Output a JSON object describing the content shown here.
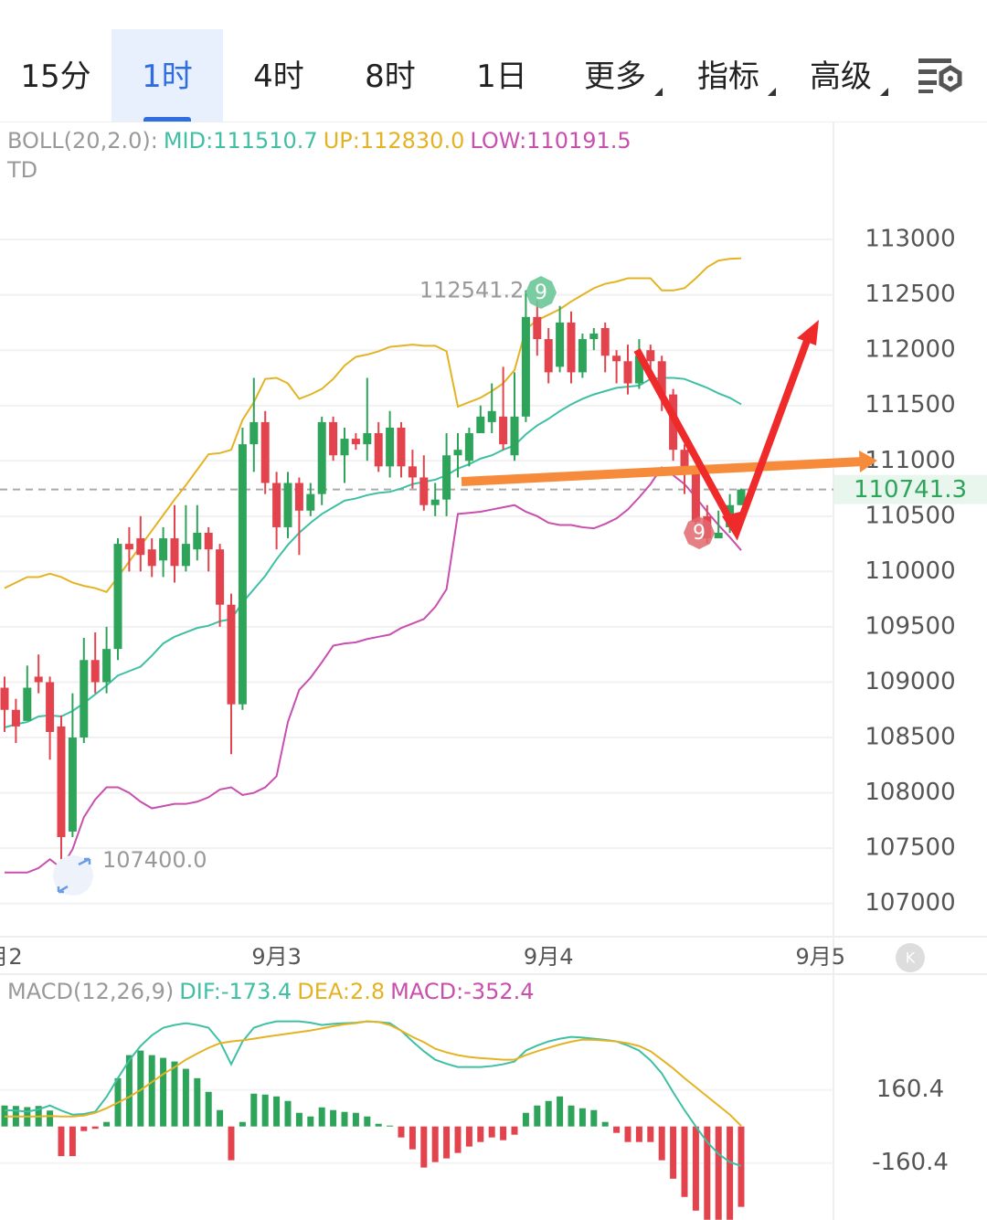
{
  "tabs": {
    "items": [
      "15分",
      "1时",
      "4时",
      "8时",
      "1日",
      "更多",
      "指标",
      "高级"
    ],
    "active": 1
  },
  "chart_data": [
    {
      "type": "candlestick",
      "indicator": "BOLL(20,2.0):",
      "sub_label": "TD",
      "open": [
        108950,
        108750,
        108650,
        109050,
        109000,
        108600,
        107650,
        108500,
        109200,
        109000,
        109300,
        110250,
        110300,
        110200,
        110100,
        110300,
        110050,
        110200,
        110350,
        110200,
        109700,
        108800,
        111150,
        111350,
        110800,
        110400,
        110800,
        110550,
        110700,
        111350,
        111050,
        111200,
        111150,
        111250,
        110950,
        111300,
        110950,
        110850,
        110600,
        110650,
        111050,
        111000,
        111250,
        111350,
        111400,
        111050,
        111400,
        112300,
        112100,
        111850,
        112250,
        111800,
        112100,
        112200,
        111950,
        111900,
        111700,
        112000,
        111900,
        111600,
        111100,
        110900,
        110500,
        110300,
        110400,
        110600
      ],
      "high": [
        109050,
        108850,
        109150,
        109250,
        109050,
        108700,
        108900,
        109400,
        109450,
        109500,
        110300,
        110400,
        110500,
        110300,
        110400,
        110600,
        110600,
        110600,
        110400,
        110250,
        109800,
        111300,
        111750,
        111450,
        110900,
        110900,
        110850,
        110800,
        111400,
        111400,
        111300,
        111250,
        111750,
        111350,
        111450,
        111350,
        111100,
        111050,
        110800,
        111250,
        111250,
        111300,
        111500,
        111700,
        111850,
        111800,
        112541.2,
        112450,
        112200,
        112400,
        112350,
        112150,
        112200,
        112250,
        112000,
        112050,
        112100,
        112050,
        111950,
        111650,
        111150,
        110950,
        110600,
        110550,
        110700,
        110750
      ],
      "low": [
        108550,
        108450,
        108700,
        108900,
        108300,
        107400,
        107600,
        108450,
        108900,
        108900,
        109200,
        110000,
        110000,
        109950,
        109950,
        109900,
        110000,
        110100,
        110000,
        109500,
        108350,
        108750,
        110900,
        110700,
        110200,
        110300,
        110150,
        110500,
        110600,
        111000,
        110800,
        111100,
        111000,
        110900,
        110850,
        110850,
        110750,
        110550,
        110500,
        110500,
        110850,
        110950,
        111250,
        111250,
        111100,
        111000,
        111350,
        111950,
        111700,
        111800,
        111700,
        111750,
        112000,
        111800,
        111700,
        111600,
        111650,
        111750,
        111450,
        111000,
        110700,
        110350,
        110250,
        110300,
        110350,
        110600
      ],
      "close": [
        108750,
        108600,
        108950,
        109000,
        108550,
        107600,
        108500,
        109200,
        109000,
        109300,
        110250,
        110200,
        110150,
        110050,
        110300,
        110050,
        110250,
        110350,
        110200,
        109700,
        108800,
        111150,
        111350,
        110800,
        110400,
        110800,
        110550,
        110700,
        111350,
        111050,
        111200,
        111150,
        111250,
        110950,
        111300,
        110950,
        110850,
        110600,
        110650,
        111050,
        111100,
        111250,
        111400,
        111450,
        111150,
        111400,
        112300,
        112100,
        111800,
        112250,
        111800,
        112100,
        112150,
        111950,
        111900,
        111700,
        111950,
        111900,
        111600,
        111100,
        110900,
        110450,
        110300,
        110350,
        110600,
        110741.3
      ],
      "up_color": "#2ea35a",
      "down_color": "#e2434c",
      "series": [
        {
          "name": "MID:111510.7",
          "color": "#3fbfa3",
          "values": [
            108590,
            108620,
            108640,
            108690,
            108700,
            108690,
            108740,
            108810,
            108890,
            108970,
            109060,
            109100,
            109140,
            109240,
            109350,
            109410,
            109450,
            109490,
            109510,
            109550,
            109570,
            109720,
            109840,
            109960,
            110110,
            110240,
            110350,
            110440,
            110520,
            110580,
            110640,
            110660,
            110690,
            110710,
            110720,
            110750,
            110790,
            110810,
            110830,
            110870,
            110930,
            110970,
            111020,
            111050,
            111100,
            111140,
            111240,
            111320,
            111380,
            111450,
            111510,
            111560,
            111600,
            111630,
            111660,
            111670,
            111680,
            111740,
            111750,
            111750,
            111740,
            111700,
            111660,
            111610,
            111570,
            111510.7
          ]
        },
        {
          "name": "UP:112830.0",
          "color": "#e4b324",
          "values": [
            109850,
            109900,
            109950,
            109950,
            109980,
            109950,
            109900,
            109870,
            109850,
            109815,
            109950,
            110090,
            110230,
            110370,
            110510,
            110650,
            110780,
            110920,
            111060,
            111070,
            111100,
            111370,
            111530,
            111740,
            111750,
            111700,
            111560,
            111600,
            111650,
            111740,
            111860,
            111940,
            111960,
            111990,
            112030,
            112040,
            112050,
            112040,
            112040,
            111990,
            111490,
            111530,
            111570,
            111630,
            111700,
            111820,
            112190,
            112270,
            112320,
            112370,
            112440,
            112500,
            112560,
            112600,
            112620,
            112650,
            112650,
            112650,
            112540,
            112540,
            112560,
            112650,
            112750,
            112810,
            112825,
            112830
          ]
        },
        {
          "name": "LOW:110191.5",
          "color": "#c84fae",
          "values": [
            107280,
            107280,
            107280,
            107320,
            107400,
            107320,
            107490,
            107780,
            107940,
            108050,
            108050,
            108000,
            107920,
            107860,
            107880,
            107900,
            107900,
            107920,
            107960,
            108030,
            108050,
            107980,
            108000,
            108050,
            108150,
            108640,
            108930,
            109040,
            109180,
            109330,
            109350,
            109360,
            109390,
            109410,
            109430,
            109490,
            109530,
            109570,
            109680,
            109840,
            110520,
            110530,
            110540,
            110560,
            110580,
            110600,
            110540,
            110500,
            110440,
            110420,
            110420,
            110400,
            110390,
            110430,
            110480,
            110560,
            110670,
            110790,
            110940,
            110870,
            110790,
            110670,
            110540,
            110420,
            110310,
            110191.5
          ]
        }
      ],
      "ylim": [
        106700,
        114000
      ],
      "yticks": [
        107000,
        107500,
        108000,
        108500,
        109000,
        109500,
        110000,
        110500,
        111000,
        111500,
        112000,
        112500,
        113000
      ],
      "grid": true,
      "xticks": [
        {
          "value": 0,
          "label": "月2"
        },
        {
          "value": 24,
          "label": "9月3"
        },
        {
          "value": 48,
          "label": "9月4"
        },
        {
          "value": 72,
          "label": "9月5"
        }
      ],
      "last": 110741.3,
      "high_label": 112541.2,
      "low_label": {
        "value": 107400,
        "label": "107400.0"
      },
      "td": [
        "9",
        "9"
      ]
    },
    {
      "type": "macd",
      "indicator": "MACD(12,26,9)",
      "hist_name": "MACD:-352.4",
      "hist_color": "#c84fae",
      "values": [
        92,
        90,
        85,
        90,
        70,
        -130,
        -130,
        -20,
        -10,
        20,
        212,
        313,
        333,
        313,
        301,
        285,
        253,
        212,
        152,
        72,
        -148,
        20,
        144,
        140,
        132,
        112,
        60,
        44,
        84,
        72,
        64,
        60,
        44,
        12,
        4,
        -48,
        -100,
        -180,
        -156,
        -140,
        -116,
        -88,
        -68,
        -48,
        -60,
        -36,
        60,
        92,
        112,
        132,
        92,
        80,
        72,
        20,
        -28,
        -68,
        -68,
        -68,
        -148,
        -229,
        -309,
        -369,
        -409,
        -409,
        -409,
        -352.4
      ],
      "up_color": "#2ea35a",
      "down_color": "#e2434c",
      "series": [
        {
          "name": "DIF:-173.4",
          "color": "#3fbfa3",
          "values": [
            72,
            70,
            65,
            75,
            92,
            70,
            52,
            55,
            65,
            130,
            212,
            290,
            353,
            400,
            433,
            445,
            453,
            445,
            433,
            373,
            273,
            373,
            433,
            450,
            461,
            461,
            461,
            455,
            445,
            450,
            453,
            455,
            461,
            458,
            453,
            420,
            373,
            330,
            293,
            275,
            261,
            261,
            261,
            265,
            273,
            285,
            333,
            355,
            373,
            385,
            393,
            390,
            385,
            380,
            373,
            355,
            333,
            290,
            233,
            150,
            72,
            0,
            -68,
            -120,
            -156,
            -173.4
          ]
        },
        {
          "name": "DEA:2.8",
          "color": "#e4b324",
          "values": [
            44,
            44,
            44,
            44,
            46,
            44,
            44,
            48,
            60,
            80,
            105,
            130,
            160,
            195,
            230,
            260,
            293,
            320,
            345,
            365,
            373,
            378,
            385,
            393,
            400,
            407,
            414,
            421,
            430,
            440,
            448,
            453,
            461,
            458,
            445,
            420,
            393,
            370,
            341,
            325,
            313,
            305,
            300,
            297,
            293,
            293,
            313,
            330,
            345,
            360,
            372,
            381,
            380,
            377,
            373,
            365,
            353,
            330,
            293,
            255,
            212,
            172,
            132,
            92,
            52,
            2.8
          ]
        }
      ],
      "ylim": [
        -410,
        660
      ],
      "yticks": [
        -160.4,
        160.4
      ],
      "grid": true
    }
  ]
}
